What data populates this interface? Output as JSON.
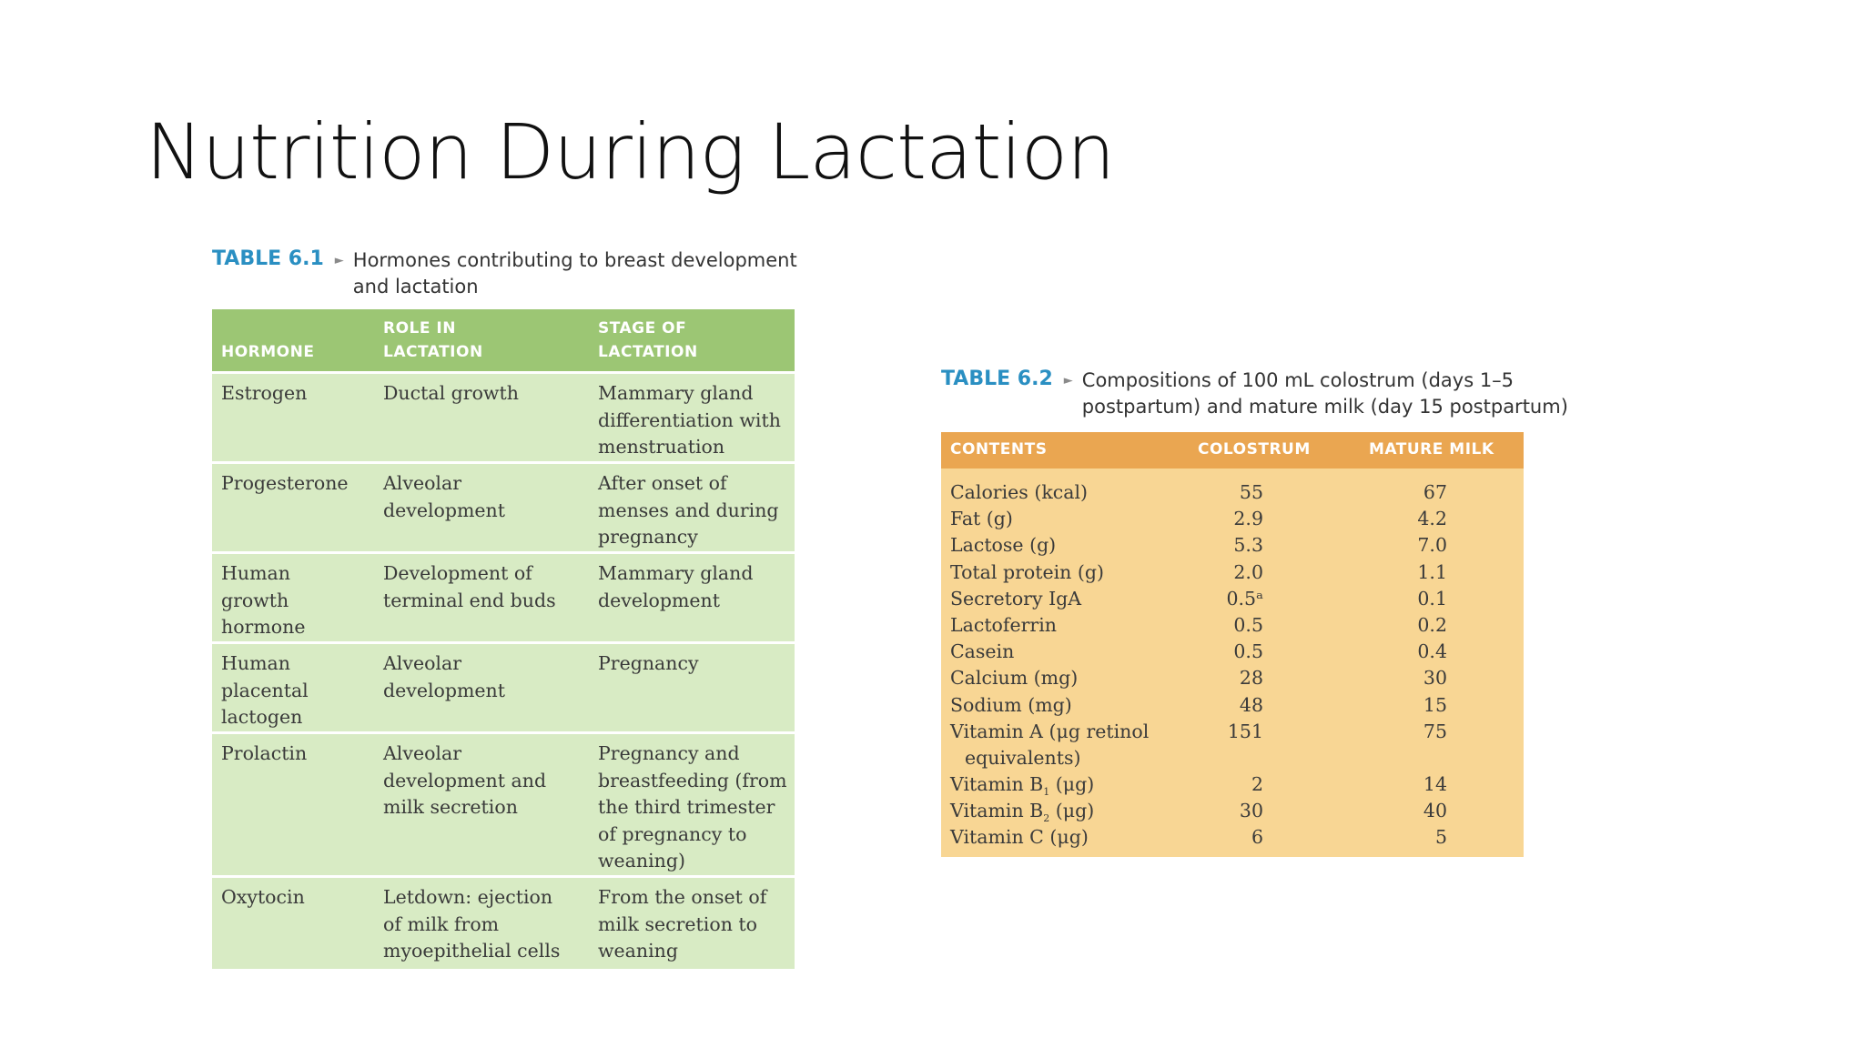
{
  "slide": {
    "title": "Nutrition During Lactation"
  },
  "table1": {
    "label": "TABLE 6.1",
    "caption_line1": "Hormones contributing to breast development",
    "caption_line2": "and lactation",
    "headers": [
      "HORMONE",
      "ROLE IN",
      "LACTATION",
      "STAGE OF",
      "LACTATION"
    ],
    "rows": [
      {
        "hormone": [
          "Estrogen"
        ],
        "role": [
          "Ductal growth"
        ],
        "stage": [
          "Mammary gland",
          "differentiation with",
          "menstruation"
        ]
      },
      {
        "hormone": [
          "Progesterone"
        ],
        "role": [
          "Alveolar",
          "development"
        ],
        "stage": [
          "After onset of",
          "menses and during",
          "pregnancy"
        ]
      },
      {
        "hormone": [
          "Human",
          "growth",
          "hormone"
        ],
        "role": [
          "Development of",
          "terminal end buds"
        ],
        "stage": [
          "Mammary gland",
          "development"
        ]
      },
      {
        "hormone": [
          "Human",
          "placental",
          "lactogen"
        ],
        "role": [
          "Alveolar",
          "development"
        ],
        "stage": [
          "Pregnancy"
        ]
      },
      {
        "hormone": [
          "Prolactin"
        ],
        "role": [
          "Alveolar",
          "development and",
          "milk secretion"
        ],
        "stage": [
          "Pregnancy and",
          "breastfeeding (from",
          "the third trimester",
          "of pregnancy to",
          "weaning)"
        ]
      },
      {
        "hormone": [
          "Oxytocin"
        ],
        "role": [
          "Letdown: ejection",
          "of milk from",
          "myoepithelial cells"
        ],
        "stage": [
          "From the onset of",
          "milk secretion to",
          "weaning"
        ]
      }
    ]
  },
  "table2": {
    "label": "TABLE 6.2",
    "caption_line1": "Compositions of 100 mL colostrum (days 1–5",
    "caption_line2": "postpartum) and mature milk (day 15 postpartum)",
    "headers": [
      "CONTENTS",
      "COLOSTRUM",
      "MATURE MILK"
    ],
    "rows": [
      {
        "name": "Calories (kcal)",
        "colostrum": "55",
        "mature": "67"
      },
      {
        "name": "Fat (g)",
        "colostrum": "2.9",
        "mature": "4.2"
      },
      {
        "name": "Lactose (g)",
        "colostrum": "5.3",
        "mature": "7.0"
      },
      {
        "name": "Total protein (g)",
        "colostrum": "2.0",
        "mature": "1.1"
      },
      {
        "name": "Secretory IgA",
        "colostrum": "0.5ᵃ",
        "mature": "0.1"
      },
      {
        "name": "Lactoferrin",
        "colostrum": "0.5",
        "mature": "0.2"
      },
      {
        "name": "Casein",
        "colostrum": "0.5",
        "mature": "0.4"
      },
      {
        "name": "Calcium (mg)",
        "colostrum": "28",
        "mature": "30"
      },
      {
        "name": "Sodium (mg)",
        "colostrum": "48",
        "mature": "15"
      },
      {
        "name": "Vitamin A (μg retinol",
        "name2": "equivalents)",
        "colostrum": "151",
        "mature": "75"
      },
      {
        "name": "Vitamin B",
        "sub": "1",
        "unit": " (μg)",
        "colostrum": "2",
        "mature": "14"
      },
      {
        "name": "Vitamin B",
        "sub": "2",
        "unit": " (μg)",
        "colostrum": "30",
        "mature": "40"
      },
      {
        "name": "Vitamin C (μg)",
        "colostrum": "6",
        "mature": "5"
      }
    ]
  }
}
